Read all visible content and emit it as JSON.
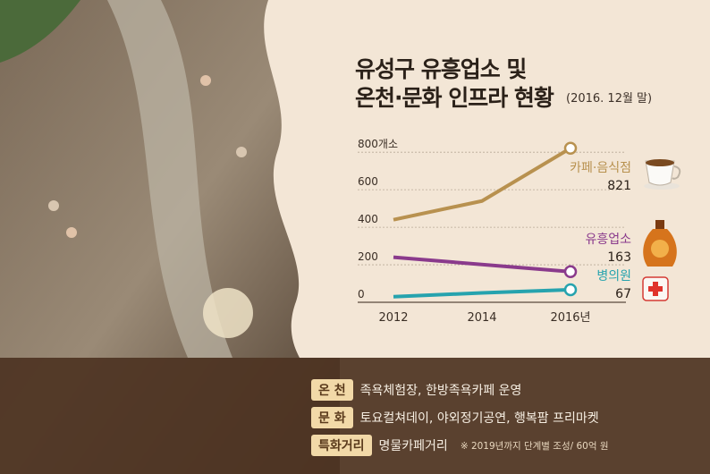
{
  "title_line1": "유성구 유흥업소 및",
  "title_line2": "온천·문화 인프라 현황",
  "title_date": "(2016. 12월 말)",
  "chart_data": {
    "type": "line",
    "x": [
      2012,
      2014,
      2016
    ],
    "x_tick_labels": [
      "2012",
      "2014",
      "2016년"
    ],
    "y_tick_labels": [
      "800개소",
      "600",
      "400",
      "200",
      "0"
    ],
    "y_ticks": [
      800,
      600,
      400,
      200,
      0
    ],
    "ylim": [
      0,
      820
    ],
    "series": [
      {
        "name": "카페·음식점",
        "values": [
          440,
          540,
          821
        ],
        "end_label": "821",
        "color": "#b8914f"
      },
      {
        "name": "유흥업소",
        "values": [
          240,
          null,
          163
        ],
        "end_label": "163",
        "color": "#8a3a8c"
      },
      {
        "name": "병의원",
        "values": [
          30,
          50,
          67
        ],
        "end_label": "67",
        "color": "#26a3ae"
      }
    ]
  },
  "rows": [
    {
      "tag": "온 천",
      "text": "족욕체험장, 한방족욕카페 운영",
      "note": ""
    },
    {
      "tag": "문 화",
      "text": "토요컬쳐데이, 야외정기공연, 행복팜 프리마켓",
      "note": ""
    },
    {
      "tag": "특화거리",
      "text": "명물카페거리",
      "note": "※ 2019년까지 단계별 조성/ 60억 원"
    }
  ],
  "colors": {
    "panel": "#f3e6d6",
    "bar": "#4e3422",
    "tag_bg": "#f2d9a8"
  }
}
